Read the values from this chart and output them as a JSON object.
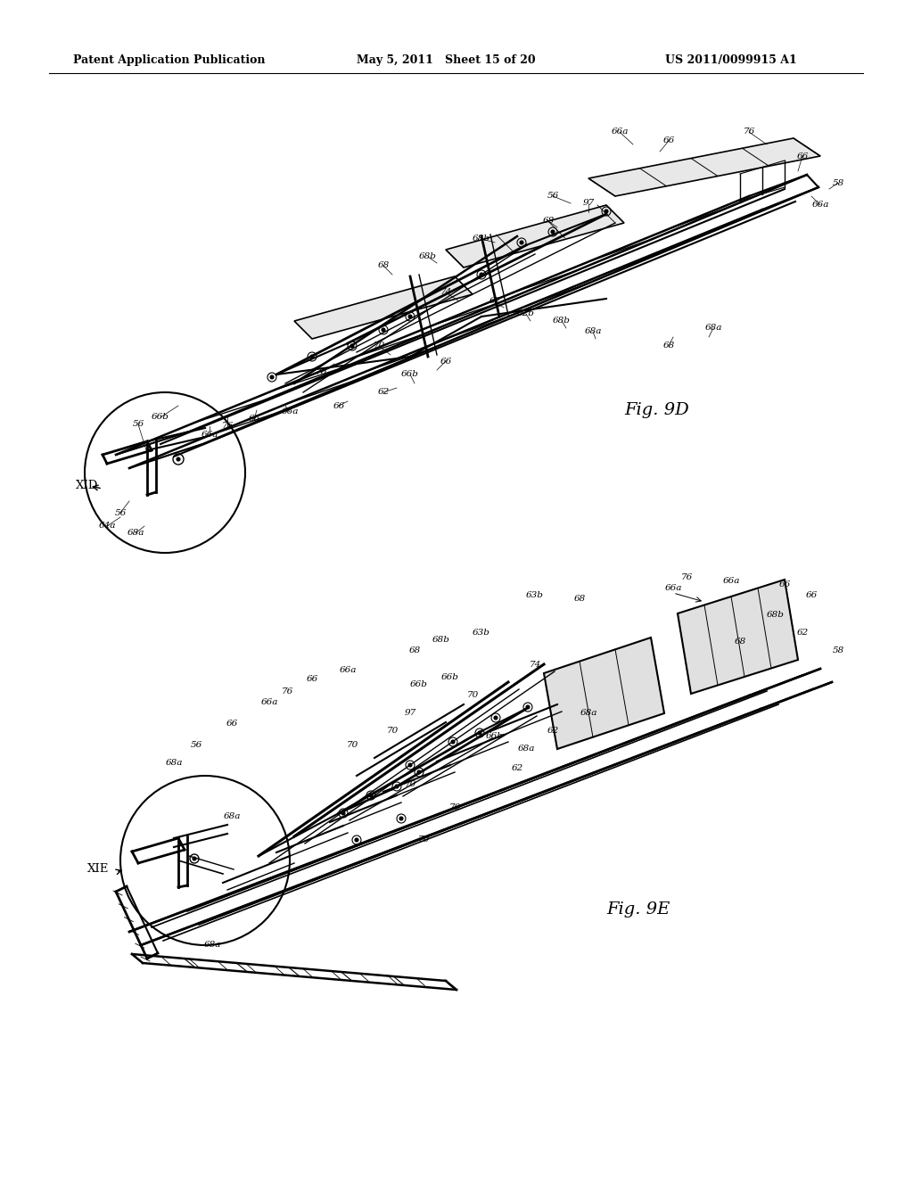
{
  "background_color": "#ffffff",
  "header_left": "Patent Application Publication",
  "header_center": "May 5, 2011   Sheet 15 of 20",
  "header_right": "US 2011/0099915 A1",
  "fig9d_label": "Fig. 9D",
  "fig9e_label": "Fig. 9E",
  "xid_label": "XID",
  "xie_label": "XIE",
  "line_color": "#000000"
}
